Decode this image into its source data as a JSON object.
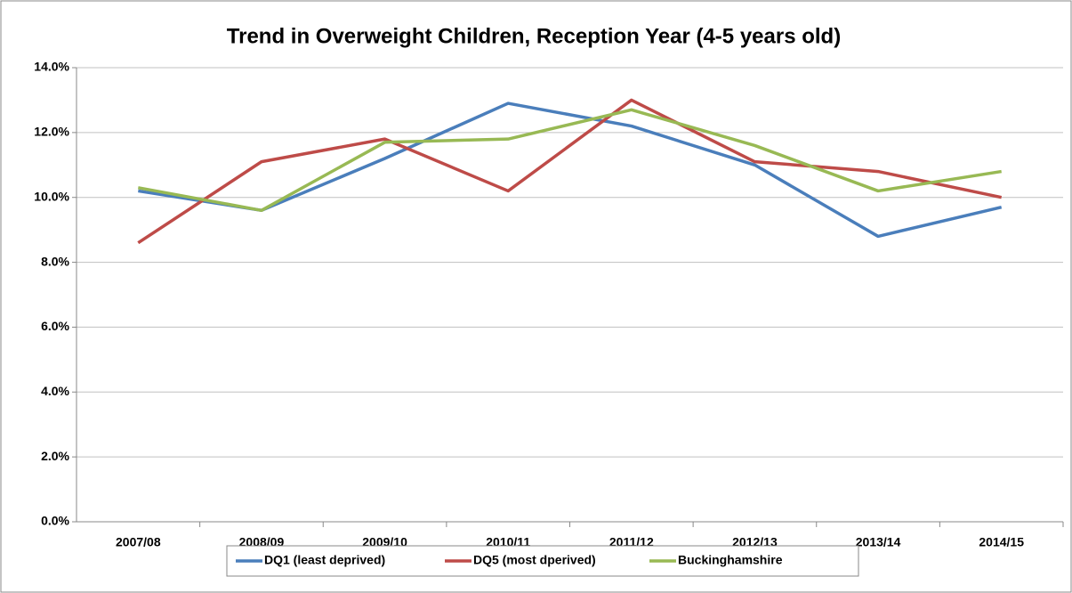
{
  "chart_data": {
    "type": "line",
    "title": "Trend in Overweight Children, Reception Year (4-5 years old)",
    "categories": [
      "2007/08",
      "2008/09",
      "2009/10",
      "2010/11",
      "2011/12",
      "2012/13",
      "2013/14",
      "2014/15"
    ],
    "series": [
      {
        "name": "DQ1 (least deprived)",
        "color": "#4a7ebb",
        "values": [
          10.2,
          9.6,
          11.2,
          12.9,
          12.2,
          11.0,
          8.8,
          9.7
        ]
      },
      {
        "name": "DQ5 (most dperived)",
        "color": "#be4b48",
        "values": [
          8.6,
          11.1,
          11.8,
          10.2,
          13.0,
          11.1,
          10.8,
          10.0
        ]
      },
      {
        "name": "Buckinghamshire",
        "color": "#98b954",
        "values": [
          10.3,
          9.6,
          11.7,
          11.8,
          12.7,
          11.6,
          10.2,
          10.8
        ]
      }
    ],
    "ylim": [
      0,
      14
    ],
    "yticks": [
      {
        "value": 0,
        "label": "0.0%"
      },
      {
        "value": 2,
        "label": "2.0%"
      },
      {
        "value": 4,
        "label": "4.0%"
      },
      {
        "value": 6,
        "label": "6.0%"
      },
      {
        "value": 8,
        "label": "8.0%"
      },
      {
        "value": 10,
        "label": "10.0%"
      },
      {
        "value": 12,
        "label": "12.0%"
      },
      {
        "value": 14,
        "label": "14.0%"
      }
    ],
    "grid": true,
    "legend": "bottom"
  }
}
